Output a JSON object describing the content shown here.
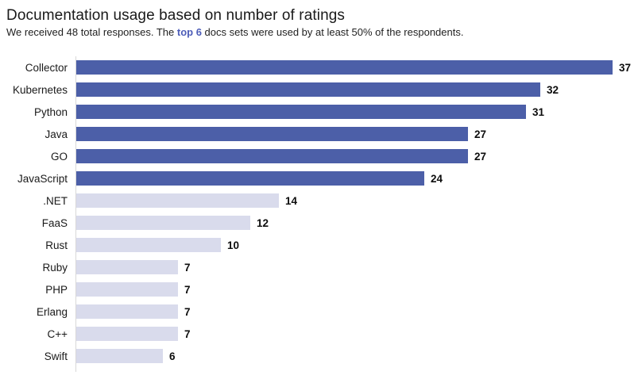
{
  "header": {
    "title": "Documentation usage based on number of ratings",
    "subtitle_prefix": "We received 48 total responses. The ",
    "subtitle_highlight": "top 6",
    "subtitle_suffix": " docs sets were used by at least 50% of the respondents."
  },
  "colors": {
    "bar_top6": "#4c5fa8",
    "bar_rest": "#d9dbec",
    "highlight_text": "#4d5db8",
    "axis_line": "#d8d8d8",
    "title_text": "#1a1a1a",
    "value_text": "#0d0d0d"
  },
  "chart_data": {
    "type": "bar",
    "orientation": "horizontal",
    "title": "Documentation usage based on number of ratings",
    "subtitle": "We received 48 total responses. The top 6 docs sets were used by at least 50% of the respondents.",
    "categories": [
      "Collector",
      "Kubernetes",
      "Python",
      "Java",
      "GO",
      "JavaScript",
      ".NET",
      "FaaS",
      "Rust",
      "Ruby",
      "PHP",
      "Erlang",
      "C++",
      "Swift"
    ],
    "values": [
      37,
      32,
      31,
      27,
      27,
      24,
      14,
      12,
      10,
      7,
      7,
      7,
      7,
      6
    ],
    "total_responses": 48,
    "top6_count": 6,
    "xlabel": "",
    "ylabel": "",
    "xlim": [
      0,
      40
    ],
    "grid": false,
    "legend": null,
    "data_labels": true
  }
}
